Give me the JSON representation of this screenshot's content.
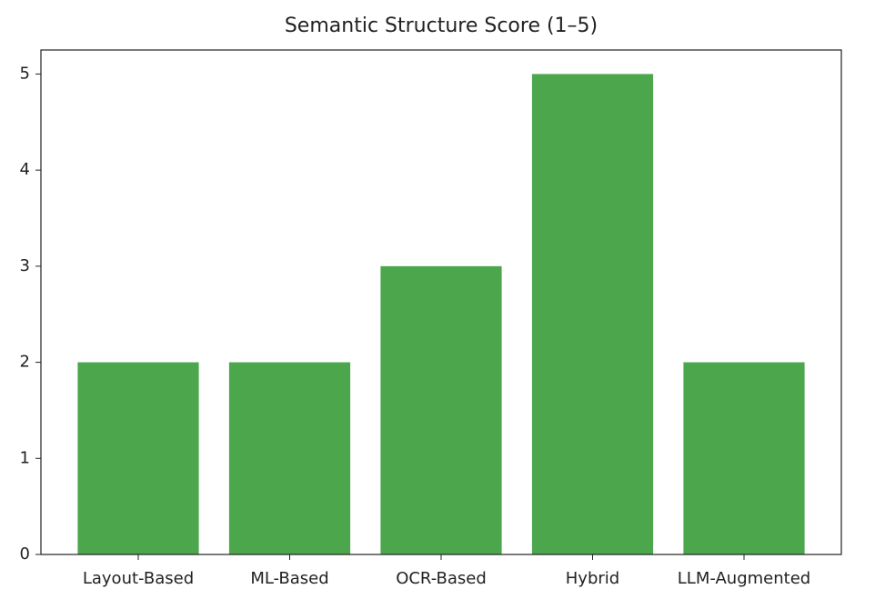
{
  "chart_data": {
    "type": "bar",
    "title": "Semantic Structure Score (1–5)",
    "categories": [
      "Layout-Based",
      "ML-Based",
      "OCR-Based",
      "Hybrid",
      "LLM-Augmented"
    ],
    "values": [
      2,
      2,
      3,
      5,
      2
    ],
    "color": "#4ca64c",
    "ylim": [
      0,
      5.25
    ],
    "yticks": [
      0,
      1,
      2,
      3,
      4,
      5
    ],
    "grid": false
  }
}
